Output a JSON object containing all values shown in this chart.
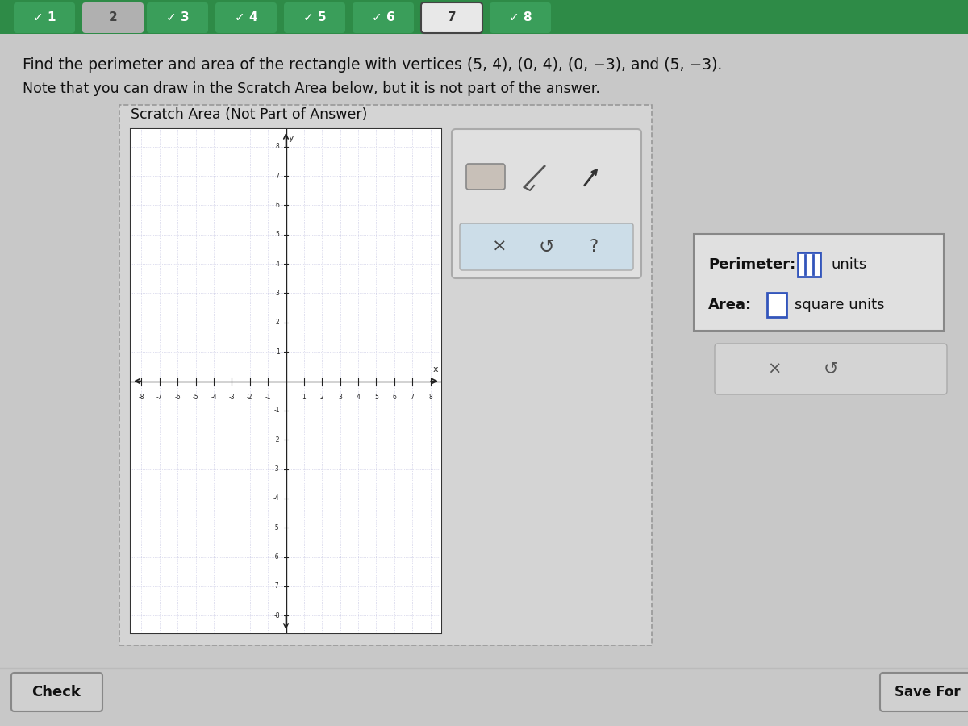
{
  "bg_color": "#c8c8c8",
  "header_bg": "#2e8b47",
  "header_text_color": "#ffffff",
  "nav_items": [
    "✓ 1",
    "2",
    "✓ 3",
    "✓ 4",
    "✓ 5",
    "✓ 6",
    "7",
    "✓ 8"
  ],
  "nav_active_index": 6,
  "nav_active_color": "#e8e8e8",
  "nav_active_border": "#444444",
  "nav_inactive_color": "#3a9e5a",
  "nav_gray_color": "#b0b0b0",
  "nav_gray_index": 1,
  "question_line1": "Find the perimeter and area of the rectangle with vertices (5, 4), (0, 4), (0, −3), and (5, −3).",
  "question_line2": "Note that you can draw in the Scratch Area below, but it is not part of the answer.",
  "scratch_label": "Scratch Area (Not Part of Answer)",
  "scratch_bg": "#ffffff",
  "scratch_border": "#333333",
  "outer_dash_color": "#999999",
  "grid_color": "#c0c0e0",
  "axis_color": "#222222",
  "tick_color": "#222222",
  "tool_panel_bg": "#e0e0e0",
  "tool_panel_border": "#aaaaaa",
  "tool_subpanel_bg": "#ccdde8",
  "tool_subpanel_border": "#aaaaaa",
  "ans_box_bg": "#e0e0e0",
  "ans_box_border": "#888888",
  "ans2_box_bg": "#d4d4d4",
  "ans2_box_border": "#aaaaaa",
  "input_color": "#3355bb",
  "check_btn_bg": "#d0d0d0",
  "check_btn_border": "#888888",
  "save_btn_bg": "#d0d0d0",
  "save_btn_border": "#888888",
  "bottom_bar_color": "#bbbbbb"
}
